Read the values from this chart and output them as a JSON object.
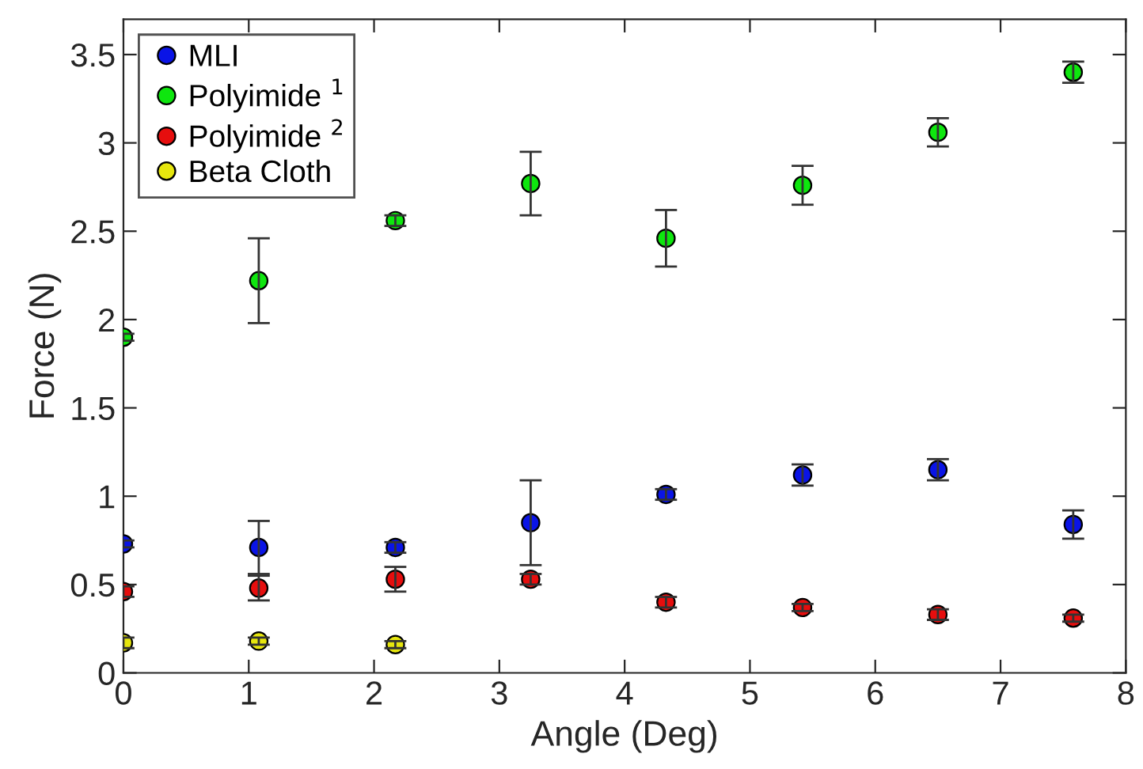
{
  "chart_data": {
    "type": "scatter",
    "xlabel": "Angle (Deg)",
    "ylabel": "Force (N)",
    "xlim": [
      0,
      8
    ],
    "xticks": [
      0,
      1,
      2,
      3,
      4,
      5,
      6,
      7,
      8
    ],
    "ylim": [
      0,
      3.7
    ],
    "yticks": [
      0,
      0.5,
      1,
      1.5,
      2,
      2.5,
      3,
      3.5
    ],
    "grid": false,
    "legend": "top left",
    "marker": "circle",
    "series": [
      {
        "name": "MLI",
        "color": "#0a14e6",
        "x": [
          0,
          1.08,
          2.17,
          3.25,
          4.33,
          5.42,
          6.5,
          7.58
        ],
        "values": [
          0.73,
          0.71,
          0.71,
          0.85,
          1.01,
          1.12,
          1.15,
          0.84
        ],
        "errors": [
          0.02,
          0.15,
          0.03,
          0.24,
          0.03,
          0.06,
          0.06,
          0.08
        ]
      },
      {
        "name": "Polyimide $^{1}$",
        "color": "#0ee60e",
        "x": [
          0,
          1.08,
          2.17,
          3.25,
          4.33,
          5.42,
          6.5,
          7.58
        ],
        "values": [
          1.9,
          2.22,
          2.56,
          2.77,
          2.46,
          2.76,
          3.06,
          3.4
        ],
        "errors": [
          0.02,
          0.24,
          0.03,
          0.18,
          0.16,
          0.11,
          0.08,
          0.06
        ]
      },
      {
        "name": "Polyimide $^{2}$",
        "color": "#e60e0e",
        "x": [
          0,
          1.08,
          2.17,
          3.25,
          4.33,
          5.42,
          6.5,
          7.58
        ],
        "values": [
          0.46,
          0.48,
          0.53,
          0.53,
          0.4,
          0.37,
          0.33,
          0.31
        ],
        "errors": [
          0.03,
          0.07,
          0.07,
          0.03,
          0.03,
          0.02,
          0.03,
          0.02
        ]
      },
      {
        "name": "Beta Cloth",
        "color": "#e6e60e",
        "x": [
          0,
          1.08,
          2.17
        ],
        "values": [
          0.17,
          0.18,
          0.16
        ],
        "errors": [
          0.03,
          0.02,
          0.02
        ]
      }
    ]
  }
}
